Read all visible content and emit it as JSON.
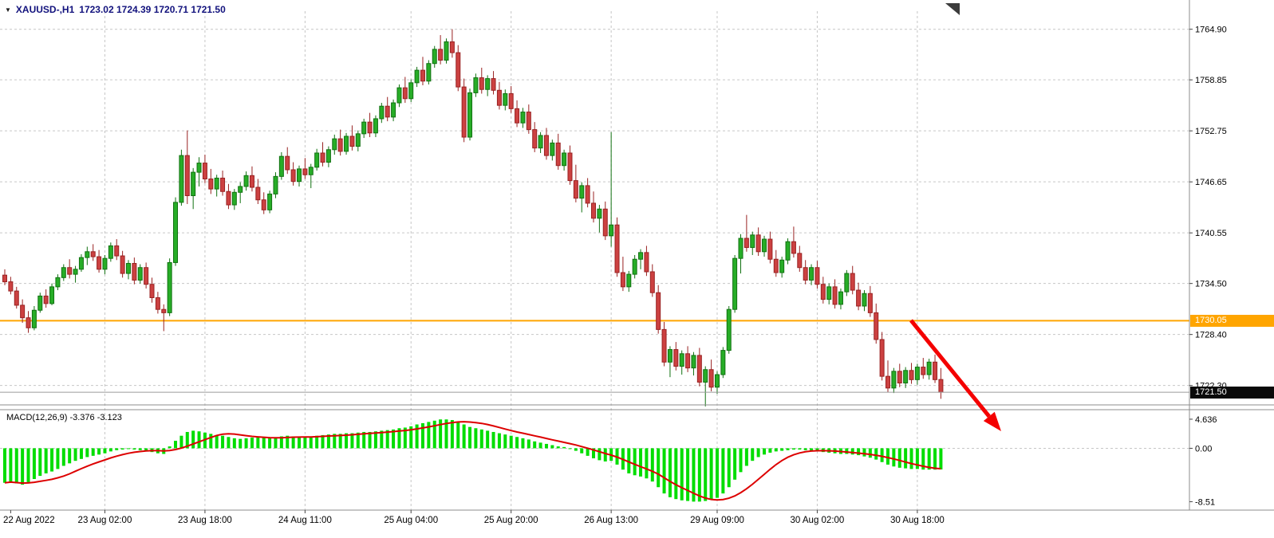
{
  "header": {
    "symbol": "XAUUSD-,H1",
    "ohlc": "1723.02 1724.39 1720.71 1721.50",
    "dropdown_icon": "▼"
  },
  "badges": {
    "hline_price": "1730.05",
    "current_price": "1721.50"
  },
  "colors": {
    "up": "#27ad27",
    "up_border": "#117111",
    "down": "#cc4141",
    "down_border": "#992222",
    "macd_bar": "#00dd00",
    "signal": "#dd0000",
    "hline": "#ffa500",
    "grid": "#c6c6c6",
    "separator": "#8c8c8c",
    "current_price_line": "#9a9a9a",
    "axis_text": "#000000",
    "header_text": "#12127d",
    "arrow": "#f40000"
  },
  "chart_data": {
    "type": "candlestick",
    "symbol": "XAUUSD-",
    "timeframe": "H1",
    "price_panel": {
      "ylim": [
        1719.6,
        1766.3
      ],
      "y_ticks": [
        1764.9,
        1758.85,
        1752.75,
        1746.65,
        1740.55,
        1734.5,
        1728.4,
        1722.3
      ],
      "hline": 1730.05,
      "current_price": 1721.5,
      "candles": [
        [
          1735.5,
          1736.2,
          1734.3,
          1734.7
        ],
        [
          1734.7,
          1735.3,
          1733.2,
          1733.6
        ],
        [
          1733.6,
          1734.1,
          1731.5,
          1731.9
        ],
        [
          1731.9,
          1732.6,
          1729.8,
          1730.4
        ],
        [
          1730.4,
          1731.2,
          1728.6,
          1729.2
        ],
        [
          1729.2,
          1731.8,
          1728.9,
          1731.3
        ],
        [
          1731.3,
          1733.4,
          1731.0,
          1733.0
        ],
        [
          1733.0,
          1733.8,
          1731.6,
          1732.1
        ],
        [
          1732.1,
          1734.5,
          1731.9,
          1734.1
        ],
        [
          1734.1,
          1735.6,
          1733.7,
          1735.2
        ],
        [
          1735.2,
          1736.8,
          1734.8,
          1736.4
        ],
        [
          1736.4,
          1737.4,
          1735.1,
          1735.6
        ],
        [
          1735.6,
          1736.6,
          1734.6,
          1736.2
        ],
        [
          1736.2,
          1738.0,
          1735.9,
          1737.6
        ],
        [
          1737.6,
          1738.9,
          1736.7,
          1738.3
        ],
        [
          1738.3,
          1739.2,
          1737.2,
          1737.7
        ],
        [
          1737.7,
          1738.5,
          1735.8,
          1736.2
        ],
        [
          1736.2,
          1737.9,
          1735.6,
          1737.5
        ],
        [
          1737.5,
          1739.4,
          1737.1,
          1739.0
        ],
        [
          1739.0,
          1739.8,
          1737.3,
          1737.8
        ],
        [
          1737.8,
          1738.4,
          1735.2,
          1735.7
        ],
        [
          1735.7,
          1737.3,
          1735.0,
          1736.9
        ],
        [
          1736.9,
          1737.6,
          1734.4,
          1734.9
        ],
        [
          1734.9,
          1736.8,
          1734.5,
          1736.4
        ],
        [
          1736.4,
          1737.0,
          1733.9,
          1734.4
        ],
        [
          1734.4,
          1735.2,
          1732.2,
          1732.8
        ],
        [
          1732.8,
          1733.5,
          1730.9,
          1731.4
        ],
        [
          1731.4,
          1732.0,
          1728.8,
          1731.0
        ],
        [
          1731.0,
          1737.5,
          1730.6,
          1737.0
        ],
        [
          1737.0,
          1744.8,
          1736.6,
          1744.2
        ],
        [
          1744.2,
          1750.5,
          1743.8,
          1749.8
        ],
        [
          1749.8,
          1752.8,
          1744.0,
          1745.0
        ],
        [
          1745.0,
          1748.3,
          1743.4,
          1747.8
        ],
        [
          1747.8,
          1749.6,
          1746.1,
          1748.9
        ],
        [
          1748.9,
          1749.9,
          1746.5,
          1747.0
        ],
        [
          1747.0,
          1748.2,
          1745.2,
          1745.8
        ],
        [
          1745.8,
          1747.5,
          1744.9,
          1747.1
        ],
        [
          1747.1,
          1748.0,
          1745.0,
          1745.5
        ],
        [
          1745.5,
          1746.4,
          1743.4,
          1743.9
        ],
        [
          1743.9,
          1745.8,
          1743.3,
          1745.4
        ],
        [
          1745.4,
          1746.6,
          1744.1,
          1746.1
        ],
        [
          1746.1,
          1747.9,
          1745.6,
          1747.4
        ],
        [
          1747.4,
          1748.5,
          1745.5,
          1746.0
        ],
        [
          1746.0,
          1747.0,
          1744.0,
          1744.5
        ],
        [
          1744.5,
          1745.4,
          1742.8,
          1743.3
        ],
        [
          1743.3,
          1745.6,
          1742.9,
          1745.2
        ],
        [
          1745.2,
          1747.8,
          1744.7,
          1747.3
        ],
        [
          1747.3,
          1750.2,
          1746.9,
          1749.7
        ],
        [
          1749.7,
          1750.8,
          1747.6,
          1748.1
        ],
        [
          1748.1,
          1749.0,
          1746.2,
          1746.7
        ],
        [
          1746.7,
          1748.6,
          1746.1,
          1748.2
        ],
        [
          1748.2,
          1749.5,
          1747.0,
          1747.5
        ],
        [
          1747.5,
          1748.8,
          1745.9,
          1748.4
        ],
        [
          1748.4,
          1750.6,
          1748.0,
          1750.1
        ],
        [
          1750.1,
          1751.4,
          1748.5,
          1749.0
        ],
        [
          1749.0,
          1750.9,
          1748.4,
          1750.5
        ],
        [
          1750.5,
          1752.3,
          1749.9,
          1751.8
        ],
        [
          1751.8,
          1752.9,
          1749.8,
          1750.3
        ],
        [
          1750.3,
          1752.5,
          1749.9,
          1752.1
        ],
        [
          1752.1,
          1753.4,
          1750.4,
          1750.9
        ],
        [
          1750.9,
          1752.8,
          1750.3,
          1752.4
        ],
        [
          1752.4,
          1754.2,
          1751.9,
          1753.8
        ],
        [
          1753.8,
          1754.9,
          1752.0,
          1752.5
        ],
        [
          1752.5,
          1754.6,
          1752.0,
          1754.2
        ],
        [
          1754.2,
          1756.1,
          1753.7,
          1755.7
        ],
        [
          1755.7,
          1756.8,
          1753.9,
          1754.4
        ],
        [
          1754.4,
          1756.5,
          1753.9,
          1756.1
        ],
        [
          1756.1,
          1758.3,
          1755.6,
          1757.9
        ],
        [
          1757.9,
          1759.2,
          1756.1,
          1756.6
        ],
        [
          1756.6,
          1758.9,
          1756.2,
          1758.5
        ],
        [
          1758.5,
          1760.4,
          1758.0,
          1760.0
        ],
        [
          1760.0,
          1761.6,
          1758.2,
          1758.7
        ],
        [
          1758.7,
          1761.2,
          1758.3,
          1760.8
        ],
        [
          1760.8,
          1762.9,
          1760.3,
          1762.5
        ],
        [
          1762.5,
          1764.2,
          1760.7,
          1761.2
        ],
        [
          1761.2,
          1763.8,
          1760.8,
          1763.4
        ],
        [
          1763.4,
          1764.9,
          1761.5,
          1762.1
        ],
        [
          1762.1,
          1763.0,
          1757.5,
          1758.0
        ],
        [
          1758.0,
          1759.0,
          1751.4,
          1752.0
        ],
        [
          1752.0,
          1757.8,
          1751.6,
          1757.3
        ],
        [
          1757.3,
          1759.6,
          1756.8,
          1759.1
        ],
        [
          1759.1,
          1760.3,
          1757.2,
          1757.7
        ],
        [
          1757.7,
          1759.4,
          1756.9,
          1759.0
        ],
        [
          1759.0,
          1759.9,
          1757.1,
          1757.6
        ],
        [
          1757.6,
          1758.6,
          1755.3,
          1755.8
        ],
        [
          1755.8,
          1757.7,
          1755.2,
          1757.2
        ],
        [
          1757.2,
          1758.1,
          1754.9,
          1755.4
        ],
        [
          1755.4,
          1756.4,
          1753.2,
          1753.7
        ],
        [
          1753.7,
          1755.5,
          1753.1,
          1755.0
        ],
        [
          1755.0,
          1755.9,
          1752.4,
          1752.9
        ],
        [
          1752.9,
          1753.8,
          1750.2,
          1750.7
        ],
        [
          1750.7,
          1752.6,
          1750.1,
          1752.2
        ],
        [
          1752.2,
          1753.1,
          1749.3,
          1749.8
        ],
        [
          1749.8,
          1751.7,
          1749.2,
          1751.3
        ],
        [
          1751.3,
          1752.4,
          1748.1,
          1748.6
        ],
        [
          1748.6,
          1750.5,
          1748.0,
          1750.1
        ],
        [
          1750.1,
          1751.0,
          1746.3,
          1746.8
        ],
        [
          1746.8,
          1748.7,
          1744.2,
          1744.7
        ],
        [
          1744.7,
          1746.6,
          1743.0,
          1746.2
        ],
        [
          1746.2,
          1747.1,
          1743.6,
          1744.1
        ],
        [
          1744.1,
          1745.5,
          1741.8,
          1742.3
        ],
        [
          1742.3,
          1743.9,
          1740.6,
          1743.4
        ],
        [
          1743.4,
          1744.3,
          1739.7,
          1740.2
        ],
        [
          1740.2,
          1752.6,
          1738.9,
          1741.5
        ],
        [
          1741.5,
          1742.4,
          1735.3,
          1735.8
        ],
        [
          1735.8,
          1737.7,
          1733.6,
          1734.1
        ],
        [
          1734.1,
          1736.0,
          1733.5,
          1735.6
        ],
        [
          1735.6,
          1737.9,
          1735.1,
          1737.4
        ],
        [
          1737.4,
          1738.6,
          1736.2,
          1738.2
        ],
        [
          1738.2,
          1739.0,
          1735.4,
          1735.9
        ],
        [
          1735.9,
          1736.8,
          1732.9,
          1733.4
        ],
        [
          1733.4,
          1734.3,
          1728.5,
          1729.0
        ],
        [
          1729.0,
          1729.9,
          1724.6,
          1725.1
        ],
        [
          1725.1,
          1727.0,
          1723.3,
          1726.6
        ],
        [
          1726.6,
          1727.5,
          1724.1,
          1724.6
        ],
        [
          1724.6,
          1726.5,
          1723.6,
          1726.1
        ],
        [
          1726.1,
          1727.0,
          1723.9,
          1724.4
        ],
        [
          1724.4,
          1726.3,
          1723.5,
          1725.9
        ],
        [
          1725.9,
          1726.8,
          1722.2,
          1722.7
        ],
        [
          1722.7,
          1724.6,
          1719.8,
          1724.2
        ],
        [
          1724.2,
          1725.4,
          1721.6,
          1722.1
        ],
        [
          1722.1,
          1724.0,
          1721.3,
          1723.6
        ],
        [
          1723.6,
          1726.9,
          1723.2,
          1726.5
        ],
        [
          1726.5,
          1731.8,
          1726.1,
          1731.4
        ],
        [
          1731.4,
          1737.9,
          1731.0,
          1737.5
        ],
        [
          1737.5,
          1740.4,
          1735.7,
          1739.9
        ],
        [
          1739.9,
          1742.7,
          1738.3,
          1738.8
        ],
        [
          1738.8,
          1740.7,
          1737.9,
          1740.3
        ],
        [
          1740.3,
          1741.2,
          1737.8,
          1738.3
        ],
        [
          1738.3,
          1740.2,
          1737.7,
          1739.8
        ],
        [
          1739.8,
          1740.7,
          1736.9,
          1737.4
        ],
        [
          1737.4,
          1738.5,
          1735.3,
          1735.8
        ],
        [
          1735.8,
          1737.7,
          1735.2,
          1737.3
        ],
        [
          1737.3,
          1739.9,
          1736.8,
          1739.5
        ],
        [
          1739.5,
          1741.3,
          1737.6,
          1738.1
        ],
        [
          1738.1,
          1739.0,
          1735.9,
          1736.4
        ],
        [
          1736.4,
          1737.3,
          1734.4,
          1734.9
        ],
        [
          1734.9,
          1736.8,
          1734.3,
          1736.4
        ],
        [
          1736.4,
          1737.2,
          1733.9,
          1734.4
        ],
        [
          1734.4,
          1735.3,
          1732.1,
          1732.6
        ],
        [
          1732.6,
          1734.5,
          1732.0,
          1734.1
        ],
        [
          1734.1,
          1735.0,
          1731.5,
          1732.0
        ],
        [
          1732.0,
          1733.9,
          1731.4,
          1733.5
        ],
        [
          1733.5,
          1736.1,
          1733.0,
          1735.7
        ],
        [
          1735.7,
          1736.6,
          1733.2,
          1733.7
        ],
        [
          1733.7,
          1734.6,
          1731.3,
          1731.8
        ],
        [
          1731.8,
          1733.7,
          1731.2,
          1733.3
        ],
        [
          1733.3,
          1734.2,
          1730.5,
          1731.0
        ],
        [
          1731.0,
          1732.1,
          1727.3,
          1727.8
        ],
        [
          1727.8,
          1728.7,
          1722.9,
          1723.4
        ],
        [
          1723.4,
          1725.3,
          1721.5,
          1722.0
        ],
        [
          1722.0,
          1724.4,
          1721.4,
          1724.0
        ],
        [
          1724.0,
          1724.9,
          1722.1,
          1722.6
        ],
        [
          1722.6,
          1724.5,
          1722.0,
          1724.1
        ],
        [
          1724.1,
          1725.0,
          1722.5,
          1723.0
        ],
        [
          1723.0,
          1724.9,
          1722.4,
          1724.5
        ],
        [
          1724.5,
          1725.6,
          1723.1,
          1723.6
        ],
        [
          1723.6,
          1725.5,
          1723.0,
          1725.1
        ],
        [
          1725.1,
          1726.0,
          1722.6,
          1723.0
        ],
        [
          1723.02,
          1724.39,
          1720.71,
          1721.5
        ]
      ]
    },
    "x_ticks": [
      {
        "label": "22 Aug 2022",
        "index": 1,
        "grid": false
      },
      {
        "label": "23 Aug 02:00",
        "index": 17,
        "grid": true
      },
      {
        "label": "23 Aug 18:00",
        "index": 34,
        "grid": true
      },
      {
        "label": "24 Aug 11:00",
        "index": 51,
        "grid": true
      },
      {
        "label": "25 Aug 04:00",
        "index": 69,
        "grid": true
      },
      {
        "label": "25 Aug 20:00",
        "index": 86,
        "grid": true
      },
      {
        "label": "26 Aug 13:00",
        "index": 103,
        "grid": true
      },
      {
        "label": "29 Aug 09:00",
        "index": 121,
        "grid": true
      },
      {
        "label": "30 Aug 02:00",
        "index": 138,
        "grid": true
      },
      {
        "label": "30 Aug 18:00",
        "index": 155,
        "grid": true
      }
    ],
    "macd_panel": {
      "label": "MACD(12,26,9) -3.376 -3.123",
      "ylim": [
        -9.6,
        5.9
      ],
      "y_ticks": [
        4.636,
        0.0,
        -8.51
      ],
      "y_tick_labels": [
        "4.636",
        "0.00",
        "-8.51"
      ],
      "last_macd": -3.376,
      "last_signal": -3.123,
      "signal_period": 9,
      "macd": [
        -5.5,
        -5.3,
        -5.6,
        -5.8,
        -5.4,
        -4.9,
        -4.4,
        -4.0,
        -3.7,
        -3.3,
        -2.8,
        -2.4,
        -2.0,
        -1.7,
        -1.4,
        -1.2,
        -1.0,
        -0.8,
        -0.5,
        -0.3,
        -0.2,
        -0.1,
        -0.2,
        -0.3,
        -0.4,
        -0.6,
        -0.8,
        -0.9,
        0.3,
        1.2,
        2.0,
        2.6,
        2.8,
        2.7,
        2.5,
        2.3,
        2.1,
        2.0,
        1.8,
        1.6,
        1.5,
        1.6,
        1.7,
        1.8,
        1.7,
        1.6,
        1.7,
        1.9,
        2.0,
        1.9,
        1.8,
        1.8,
        1.9,
        2.0,
        2.1,
        2.2,
        2.3,
        2.3,
        2.4,
        2.4,
        2.5,
        2.6,
        2.6,
        2.7,
        2.8,
        2.9,
        3.0,
        3.2,
        3.3,
        3.5,
        3.8,
        4.0,
        4.2,
        4.4,
        4.6,
        4.6,
        4.5,
        4.2,
        3.8,
        3.4,
        3.2,
        3.0,
        2.8,
        2.6,
        2.4,
        2.2,
        2.0,
        1.8,
        1.6,
        1.4,
        1.1,
        0.9,
        0.7,
        0.5,
        0.3,
        0.2,
        0.0,
        -0.4,
        -0.8,
        -1.2,
        -1.6,
        -1.9,
        -2.1,
        -2.0,
        -2.6,
        -3.4,
        -4.0,
        -4.3,
        -4.5,
        -4.8,
        -5.3,
        -6.2,
        -7.2,
        -7.8,
        -8.1,
        -8.3,
        -8.4,
        -8.5,
        -8.5,
        -8.4,
        -8.2,
        -7.9,
        -7.2,
        -6.2,
        -5.0,
        -3.8,
        -2.8,
        -2.0,
        -1.4,
        -1.0,
        -0.7,
        -0.5,
        -0.4,
        -0.3,
        -0.2,
        -0.2,
        -0.3,
        -0.4,
        -0.5,
        -0.6,
        -0.7,
        -0.8,
        -0.9,
        -0.9,
        -1.0,
        -1.1,
        -1.3,
        -1.5,
        -1.8,
        -2.2,
        -2.6,
        -2.9,
        -3.1,
        -3.2,
        -3.3,
        -3.3,
        -3.4,
        -3.4,
        -3.4,
        -3.376
      ]
    },
    "annotations": {
      "arrow": {
        "from": [
          1142,
          402
        ],
        "to": [
          1255,
          541
        ],
        "color": "#f40000",
        "width": 5
      }
    }
  }
}
